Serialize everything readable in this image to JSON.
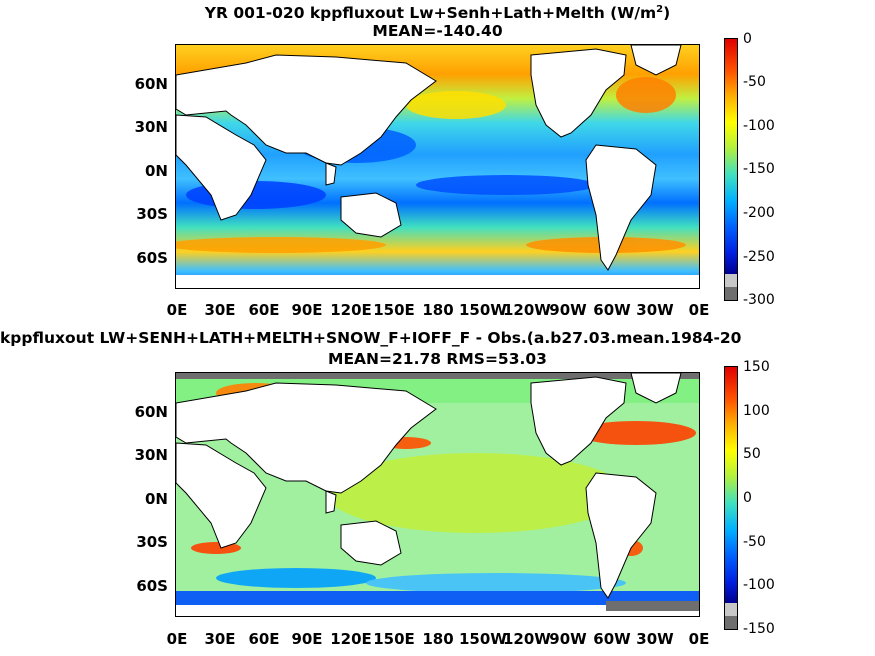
{
  "top": {
    "title_main": "YR 001-020 kppfluxout Lw+Senh+Lath+Melth (W/m",
    "title_sup": "2",
    "title_close": ")",
    "subtitle": "MEAN=-140.40",
    "colorbar_labels": [
      "0",
      "-50",
      "-100",
      "-150",
      "-200",
      "-250",
      "-300"
    ],
    "colorbar_range": [
      -300,
      0
    ]
  },
  "bottom": {
    "title": "kppfluxout LW+SENH+LATH+MELTH+SNOW_F+IOFF_F - Obs.(a.b27.03.mean.1984-20",
    "subtitle": "MEAN=21.78 RMS=53.03",
    "colorbar_labels": [
      "150",
      "100",
      "50",
      "0",
      "-50",
      "-100",
      "-150"
    ],
    "colorbar_range": [
      -150,
      150
    ]
  },
  "lat_labels": [
    "60N",
    "30N",
    "0N",
    "30S",
    "60S"
  ],
  "lon_labels": [
    "0E",
    "30E",
    "60E",
    "90E",
    "120E",
    "150E",
    "180",
    "150W",
    "120W",
    "90W",
    "60W",
    "30W",
    "0E"
  ],
  "colors": {
    "land": "#ffffff",
    "missing": "#6e6e6e",
    "colormap": [
      "#0000b0",
      "#0040ff",
      "#00a0ff",
      "#20e0e0",
      "#60f0a0",
      "#c0f040",
      "#ffff00",
      "#ffa000",
      "#ff4000",
      "#d00000"
    ]
  }
}
